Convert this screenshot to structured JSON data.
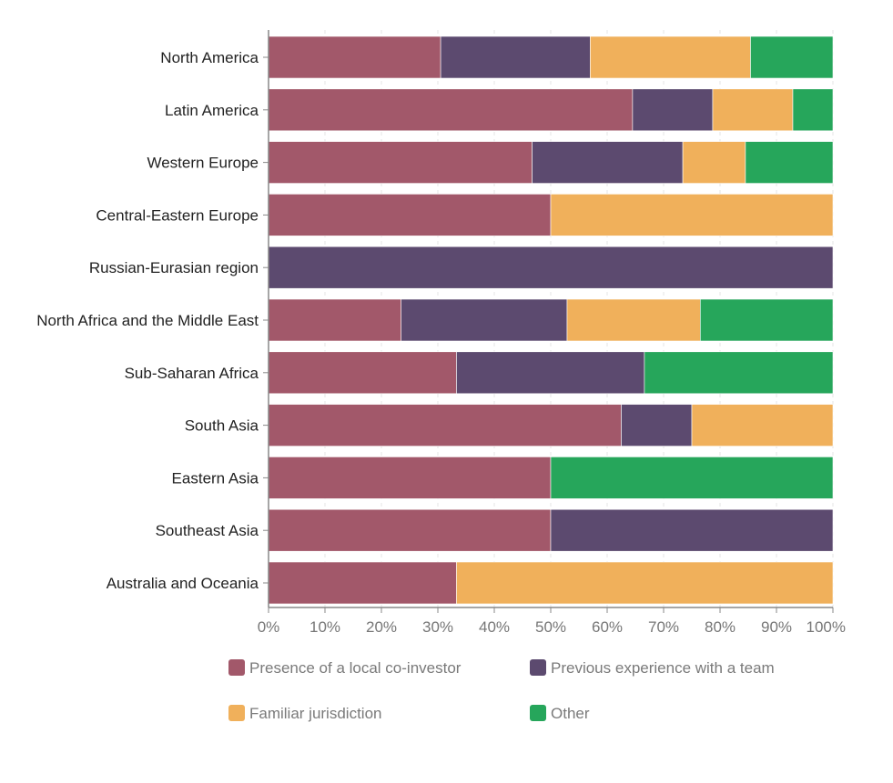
{
  "chart_data": {
    "type": "bar",
    "orientation": "horizontal",
    "stacked": true,
    "normalized": true,
    "categories": [
      "North America",
      "Latin America",
      "Western Europe",
      "Central-Eastern Europe",
      "Russian-Eurasian region",
      "North Africa and the Middle East",
      "Sub-Saharan Africa",
      "South Asia",
      "Eastern Asia",
      "Southeast Asia",
      "Australia and Oceania"
    ],
    "series": [
      {
        "name": "Presence of a local co-investor",
        "color": "#a2586a",
        "values": [
          30.5,
          64.5,
          46.7,
          50,
          0,
          23.5,
          33.3,
          62.5,
          50,
          50,
          33.3
        ]
      },
      {
        "name": "Previous experience with a team",
        "color": "#5c4a6f",
        "values": [
          26.5,
          14.2,
          26.7,
          0,
          100,
          29.4,
          33.3,
          12.5,
          0,
          50,
          0
        ]
      },
      {
        "name": "Familiar jurisdiction",
        "color": "#f0b05b",
        "values": [
          28.4,
          14.2,
          11.1,
          50,
          0,
          23.6,
          0,
          25,
          0,
          0,
          66.7
        ]
      },
      {
        "name": "Other",
        "color": "#26a65b",
        "values": [
          14.6,
          7.1,
          15.5,
          0,
          0,
          23.5,
          33.4,
          0,
          50,
          0,
          0
        ]
      }
    ],
    "xlim": [
      0,
      100
    ],
    "xticks": [
      "0%",
      "10%",
      "20%",
      "30%",
      "40%",
      "50%",
      "60%",
      "70%",
      "80%",
      "90%",
      "100%"
    ],
    "grid": "vertical dashed",
    "legend_position": "bottom",
    "title": "",
    "xlabel": "",
    "ylabel": ""
  }
}
